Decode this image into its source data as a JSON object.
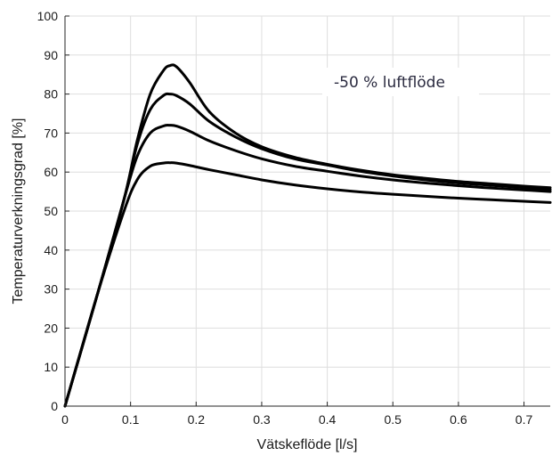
{
  "chart_data": {
    "type": "line",
    "title": "",
    "xlabel": "Vätskeflöde [l/s]",
    "ylabel": "Temperaturverkningsgrad [%]",
    "xlim": [
      0,
      0.74
    ],
    "ylim": [
      0,
      100
    ],
    "x_ticks": [
      "0",
      "0.1",
      "0.2",
      "0.3",
      "0.4",
      "0.5",
      "0.6",
      "0.7"
    ],
    "y_ticks": [
      "0",
      "10",
      "20",
      "30",
      "40",
      "50",
      "60",
      "70",
      "80",
      "90",
      "100"
    ],
    "grid": true,
    "annotation": "-50 % luftflöde",
    "line_color": "#000000",
    "series": [
      {
        "x": [
          0,
          0.05,
          0.09,
          0.11,
          0.13,
          0.15,
          0.16,
          0.17,
          0.19,
          0.22,
          0.26,
          0.3,
          0.35,
          0.4,
          0.45,
          0.5,
          0.55,
          0.6,
          0.65,
          0.7,
          0.74
        ],
        "y": [
          0,
          29,
          53,
          68,
          80,
          86,
          87.3,
          87,
          83,
          75.5,
          70,
          66.5,
          63.8,
          62,
          60.5,
          59.3,
          58.4,
          57.6,
          57.0,
          56.4,
          56.0
        ]
      },
      {
        "x": [
          0,
          0.05,
          0.09,
          0.11,
          0.13,
          0.15,
          0.16,
          0.17,
          0.19,
          0.22,
          0.26,
          0.3,
          0.35,
          0.4,
          0.45,
          0.5,
          0.55,
          0.6,
          0.65,
          0.7,
          0.74
        ],
        "y": [
          0,
          29,
          53,
          67,
          76,
          79.6,
          80.0,
          79.6,
          77.5,
          73,
          69,
          66,
          63.4,
          61.8,
          60.2,
          59.0,
          58.0,
          57.2,
          56.6,
          56.0,
          55.5
        ]
      },
      {
        "x": [
          0,
          0.05,
          0.09,
          0.11,
          0.13,
          0.15,
          0.16,
          0.17,
          0.19,
          0.22,
          0.26,
          0.3,
          0.35,
          0.4,
          0.45,
          0.5,
          0.55,
          0.6,
          0.65,
          0.7,
          0.74
        ],
        "y": [
          0,
          29,
          53,
          64,
          70,
          71.8,
          72.0,
          71.8,
          70.5,
          68,
          65.5,
          63.4,
          61.5,
          60.2,
          59.0,
          58.0,
          57.2,
          56.5,
          55.9,
          55.4,
          55.0
        ]
      },
      {
        "x": [
          0,
          0.05,
          0.09,
          0.11,
          0.13,
          0.15,
          0.16,
          0.17,
          0.19,
          0.22,
          0.26,
          0.3,
          0.35,
          0.4,
          0.45,
          0.5,
          0.55,
          0.6,
          0.65,
          0.7,
          0.74
        ],
        "y": [
          0,
          29,
          50,
          58,
          61.5,
          62.3,
          62.4,
          62.3,
          61.7,
          60.6,
          59.3,
          58.0,
          56.7,
          55.7,
          54.9,
          54.3,
          53.8,
          53.3,
          52.9,
          52.5,
          52.2
        ]
      }
    ]
  }
}
